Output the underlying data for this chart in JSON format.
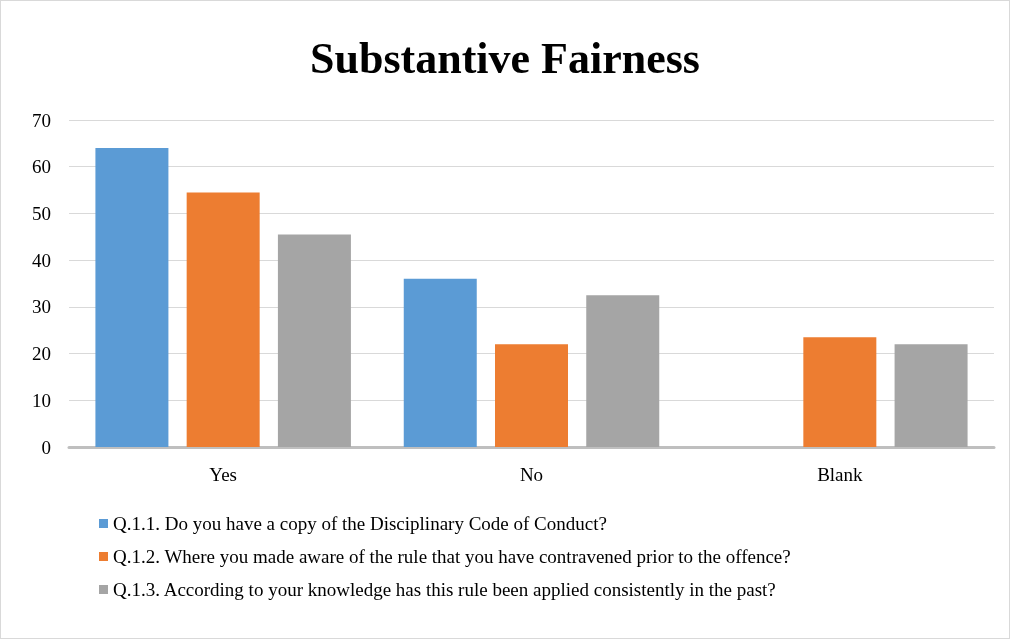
{
  "chart_data": {
    "type": "bar",
    "title": "Substantive Fairness",
    "categories": [
      "Yes",
      "No",
      "Blank"
    ],
    "series": [
      {
        "name": "Q.1.1. Do you have a copy of the Disciplinary Code of Conduct?",
        "color": "#5b9bd5",
        "values": [
          64,
          36,
          0
        ]
      },
      {
        "name": "Q.1.2. Where you made aware of the rule that you have contravened prior to the offence?",
        "color": "#ed7d31",
        "values": [
          54.5,
          22,
          23.5
        ]
      },
      {
        "name": "Q.1.3. According to your knowledge has this rule been applied consistently in the past?",
        "color": "#a5a5a5",
        "values": [
          45.5,
          32.5,
          22
        ]
      }
    ],
    "ylim": [
      0,
      70
    ],
    "yticks": [
      0,
      10,
      20,
      30,
      40,
      50,
      60,
      70
    ],
    "grid": "y",
    "legend": "bottom"
  }
}
